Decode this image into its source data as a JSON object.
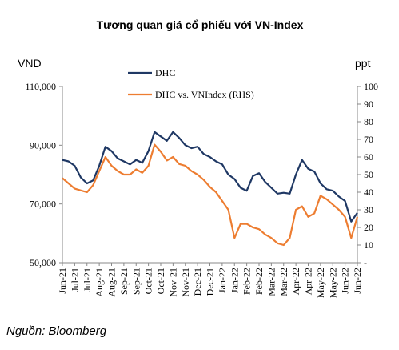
{
  "chart_data": {
    "type": "line",
    "title": "Tương quan giá cổ phiếu với VN-Index",
    "y_label": "VND",
    "y2_label": "ppt",
    "source": "Nguồn: Bloomberg",
    "categories": [
      "Jun-21",
      null,
      "Jul-21",
      null,
      "Jul-21",
      null,
      "Aug-21",
      null,
      "Aug-21",
      null,
      "Sep-21",
      null,
      "Sep-21",
      null,
      "Oct-21",
      null,
      "Oct-21",
      null,
      "Nov-21",
      null,
      "Nov-21",
      null,
      "Dec-21",
      null,
      "Dec-21",
      null,
      "Jan-22",
      null,
      "Jan-22",
      null,
      "Feb-22",
      null,
      "Feb-22",
      null,
      "Mar-22",
      null,
      "Mar-22",
      null,
      "Apr-22",
      null,
      "Apr-22",
      null,
      "May-22",
      null,
      "May-22",
      null,
      "Jun-22",
      null,
      "Jun-22"
    ],
    "series": [
      {
        "name": "DHC",
        "color": "#1f3864",
        "values": [
          85000,
          84500,
          83000,
          79000,
          77000,
          78000,
          83000,
          89500,
          88000,
          85500,
          84500,
          83500,
          85000,
          84000,
          88000,
          94500,
          93000,
          91500,
          94500,
          92500,
          90000,
          89000,
          89500,
          87000,
          86000,
          84500,
          83500,
          80000,
          78500,
          75500,
          74500,
          79500,
          80500,
          77500,
          75500,
          73500,
          73800,
          73500,
          80000,
          85000,
          82000,
          81000,
          77000,
          75000,
          74500,
          72500,
          71000,
          64000,
          67000
        ]
      },
      {
        "name": "DHC vs. VNIndex (RHS)",
        "color": "#ed7d31",
        "axis": "y2",
        "values": [
          48,
          45,
          42,
          41,
          40,
          44,
          52,
          60,
          55,
          52,
          50,
          50,
          53,
          51,
          55,
          67,
          63,
          58,
          60,
          56,
          55,
          52,
          50,
          47,
          43,
          40,
          35,
          30,
          14,
          22,
          22,
          20,
          19,
          16,
          14,
          11,
          10,
          14,
          30,
          32,
          26,
          28,
          38,
          36,
          33,
          30,
          26,
          14,
          26
        ]
      }
    ],
    "ylim": [
      50000,
      110000
    ],
    "yticks": [
      {
        "value": 50000,
        "label": "50,000"
      },
      {
        "value": 70000,
        "label": "70,000"
      },
      {
        "value": 90000,
        "label": "90,000"
      },
      {
        "value": 110000,
        "label": "110,000"
      }
    ],
    "y2lim": [
      0,
      100
    ],
    "y2ticks": [
      {
        "value": 0,
        "label": "-"
      },
      10,
      20,
      30,
      40,
      50,
      60,
      70,
      80,
      90,
      100
    ],
    "grid": false
  }
}
